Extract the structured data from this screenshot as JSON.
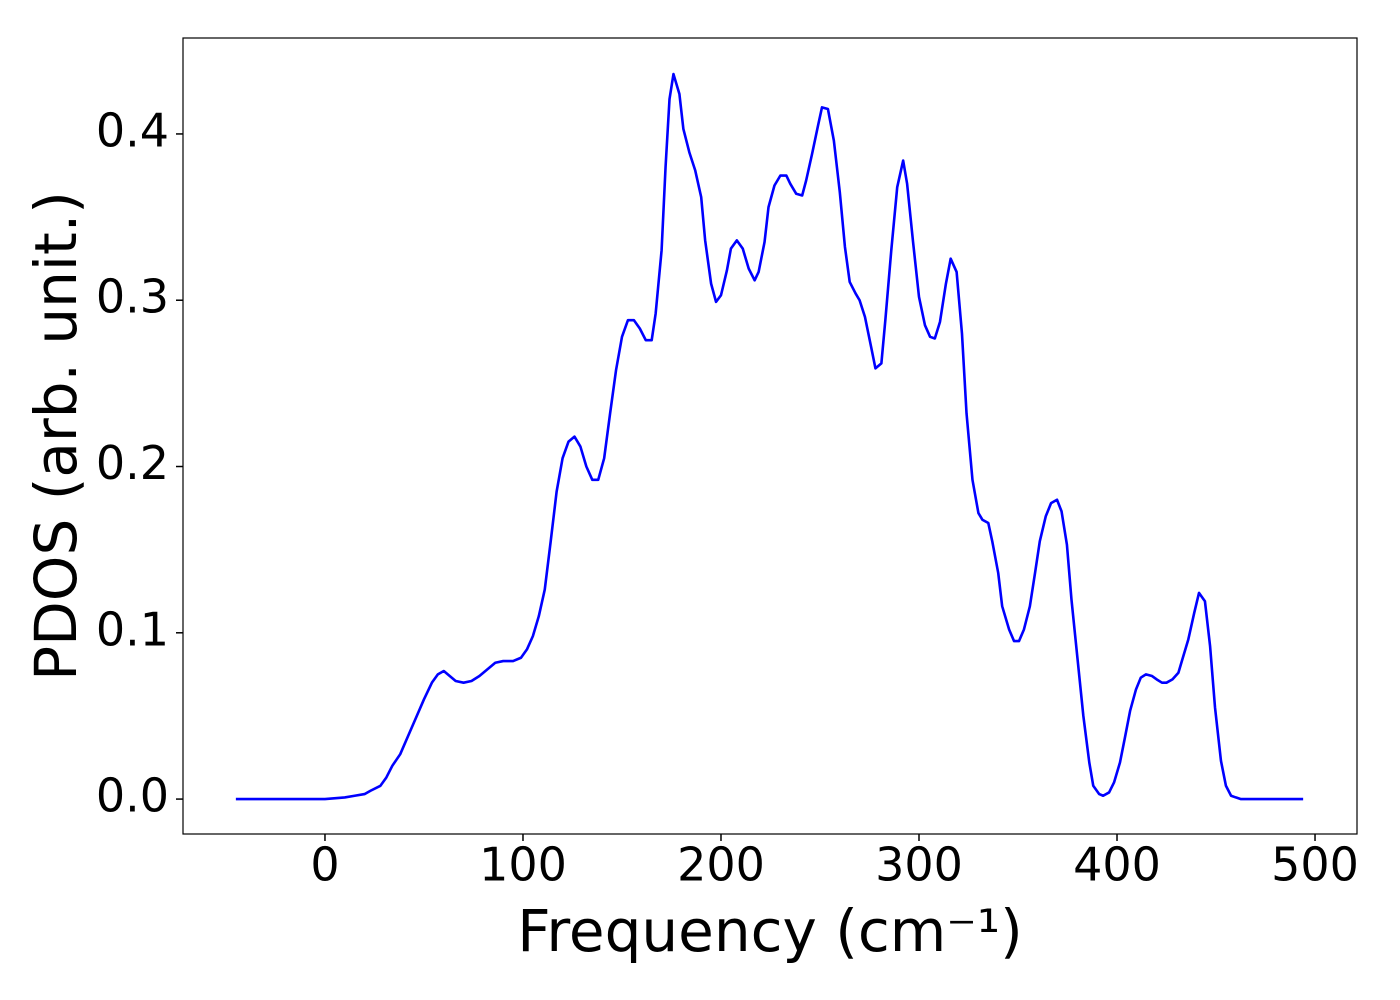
{
  "chart_data": {
    "type": "line",
    "xlabel": "Frequency (cm⁻¹)",
    "ylabel": "PDOS (arb. unit.)",
    "xlim": [
      -71.7,
      521.2
    ],
    "ylim": [
      -0.021,
      0.4577
    ],
    "xticks": [
      0,
      100,
      200,
      300,
      400,
      500
    ],
    "yticks": [
      {
        "value": 0,
        "label": "0.0"
      },
      0.1,
      0.2,
      0.3,
      0.4
    ],
    "grid": false,
    "series": [
      {
        "color": "#0000ff",
        "x": [
          -45,
          -30,
          -15,
          0,
          10,
          15,
          20,
          23,
          28,
          31,
          34,
          38,
          42,
          46,
          50,
          54,
          57,
          60,
          63,
          66,
          70,
          74,
          78,
          82,
          86,
          90,
          95,
          99,
          102,
          105,
          108,
          111,
          114,
          117,
          120,
          123,
          126,
          129,
          132,
          135,
          138,
          141,
          144,
          147,
          150,
          153,
          156,
          159,
          162,
          165,
          167,
          170,
          172,
          174,
          176,
          179,
          181,
          184,
          187,
          190,
          192,
          195,
          197.5,
          200,
          203,
          205,
          208,
          211,
          214,
          217,
          219,
          222,
          224,
          227,
          230,
          233,
          235,
          238,
          241,
          243,
          246,
          249,
          251,
          254,
          257,
          260,
          262.6,
          265,
          268,
          270,
          272.7,
          275.8,
          278,
          281,
          283,
          286,
          289,
          292,
          294,
          297,
          300,
          303,
          305.6,
          308,
          310.6,
          313.6,
          316,
          319,
          321.7,
          324,
          327,
          330,
          332,
          335,
          337,
          340,
          342,
          345.5,
          348,
          350.5,
          353,
          356,
          358.6,
          361,
          364,
          366.7,
          369.7,
          372,
          374.7,
          377,
          380,
          383,
          386,
          388,
          391,
          393,
          396,
          398.5,
          401.5,
          404,
          406.6,
          409.6,
          412,
          414.6,
          417.7,
          420,
          422.7,
          425,
          428,
          431,
          433,
          436,
          439,
          441.4,
          444.4,
          447,
          449.5,
          452.5,
          455,
          457.6,
          460,
          462.6,
          494
        ],
        "values": [
          0,
          0,
          0,
          0,
          0.001,
          0.002,
          0.003,
          0.005,
          0.008,
          0.013,
          0.02,
          0.027,
          0.038,
          0.049,
          0.06,
          0.07,
          0.075,
          0.077,
          0.074,
          0.071,
          0.07,
          0.071,
          0.074,
          0.078,
          0.082,
          0.083,
          0.083,
          0.085,
          0.09,
          0.098,
          0.11,
          0.126,
          0.155,
          0.185,
          0.205,
          0.215,
          0.218,
          0.212,
          0.2,
          0.192,
          0.192,
          0.205,
          0.232,
          0.258,
          0.278,
          0.288,
          0.288,
          0.283,
          0.276,
          0.276,
          0.292,
          0.33,
          0.38,
          0.421,
          0.436,
          0.424,
          0.403,
          0.389,
          0.378,
          0.362,
          0.336,
          0.31,
          0.299,
          0.303,
          0.318,
          0.331,
          0.336,
          0.331,
          0.319,
          0.312,
          0.317,
          0.335,
          0.356,
          0.369,
          0.375,
          0.375,
          0.37,
          0.364,
          0.363,
          0.372,
          0.388,
          0.405,
          0.416,
          0.415,
          0.396,
          0.365,
          0.332,
          0.311,
          0.304,
          0.3,
          0.29,
          0.272,
          0.259,
          0.262,
          0.288,
          0.33,
          0.368,
          0.384,
          0.37,
          0.335,
          0.302,
          0.285,
          0.278,
          0.277,
          0.287,
          0.31,
          0.325,
          0.317,
          0.28,
          0.232,
          0.192,
          0.172,
          0.168,
          0.166,
          0.155,
          0.136,
          0.116,
          0.102,
          0.095,
          0.095,
          0.102,
          0.116,
          0.136,
          0.155,
          0.17,
          0.178,
          0.18,
          0.173,
          0.153,
          0.12,
          0.085,
          0.05,
          0.022,
          0.008,
          0.003,
          0.002,
          0.004,
          0.01,
          0.022,
          0.037,
          0.053,
          0.066,
          0.073,
          0.075,
          0.074,
          0.072,
          0.07,
          0.07,
          0.072,
          0.076,
          0.084,
          0.096,
          0.112,
          0.124,
          0.119,
          0.092,
          0.055,
          0.023,
          0.008,
          0.002,
          0.001,
          0,
          0
        ]
      }
    ]
  }
}
